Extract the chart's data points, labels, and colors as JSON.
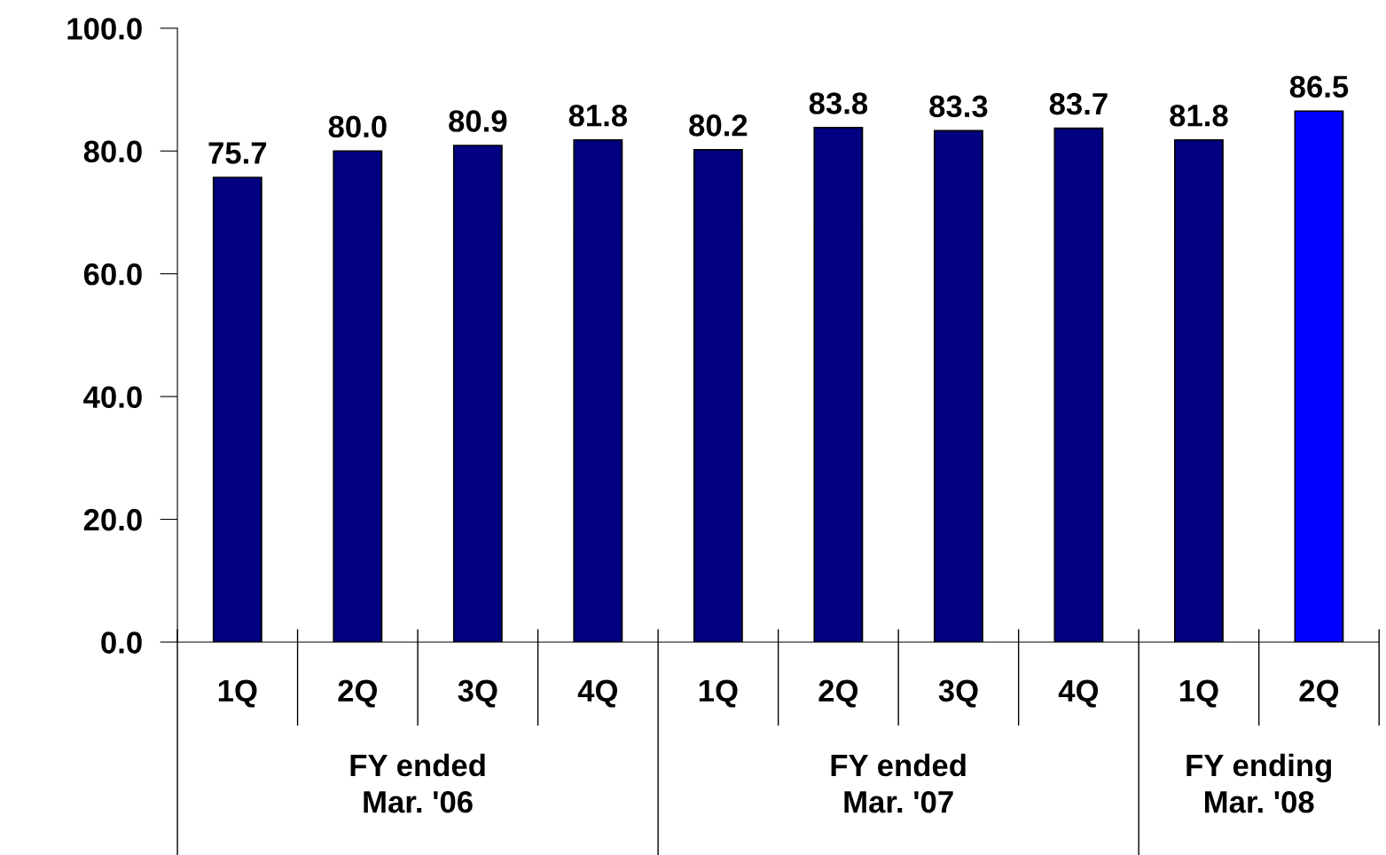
{
  "chart_data": {
    "type": "bar",
    "categories": [
      "1Q",
      "2Q",
      "3Q",
      "4Q",
      "1Q",
      "2Q",
      "3Q",
      "4Q",
      "1Q",
      "2Q"
    ],
    "values": [
      75.7,
      80.0,
      80.9,
      81.8,
      80.2,
      83.8,
      83.3,
      83.7,
      81.8,
      86.5
    ],
    "colors": [
      "#000080",
      "#000080",
      "#000080",
      "#000080",
      "#000080",
      "#000080",
      "#000080",
      "#000080",
      "#000080",
      "#0000ff"
    ],
    "ylim": [
      0,
      100
    ],
    "yticks": [
      {
        "value": 0,
        "label": "0.0"
      },
      {
        "value": 20,
        "label": "20.0"
      },
      {
        "value": 40,
        "label": "40.0"
      },
      {
        "value": 60,
        "label": "60.0"
      },
      {
        "value": 80,
        "label": "80.0"
      },
      {
        "value": 100,
        "label": "100.0"
      }
    ],
    "value_labels": [
      "75.7",
      "80.0",
      "80.9",
      "81.8",
      "80.2",
      "83.8",
      "83.3",
      "83.7",
      "81.8",
      "86.5"
    ],
    "annotations": [
      "FY ended\nMar. '06",
      "FY ended\nMar. '07",
      "FY ending\nMar. '08"
    ]
  }
}
